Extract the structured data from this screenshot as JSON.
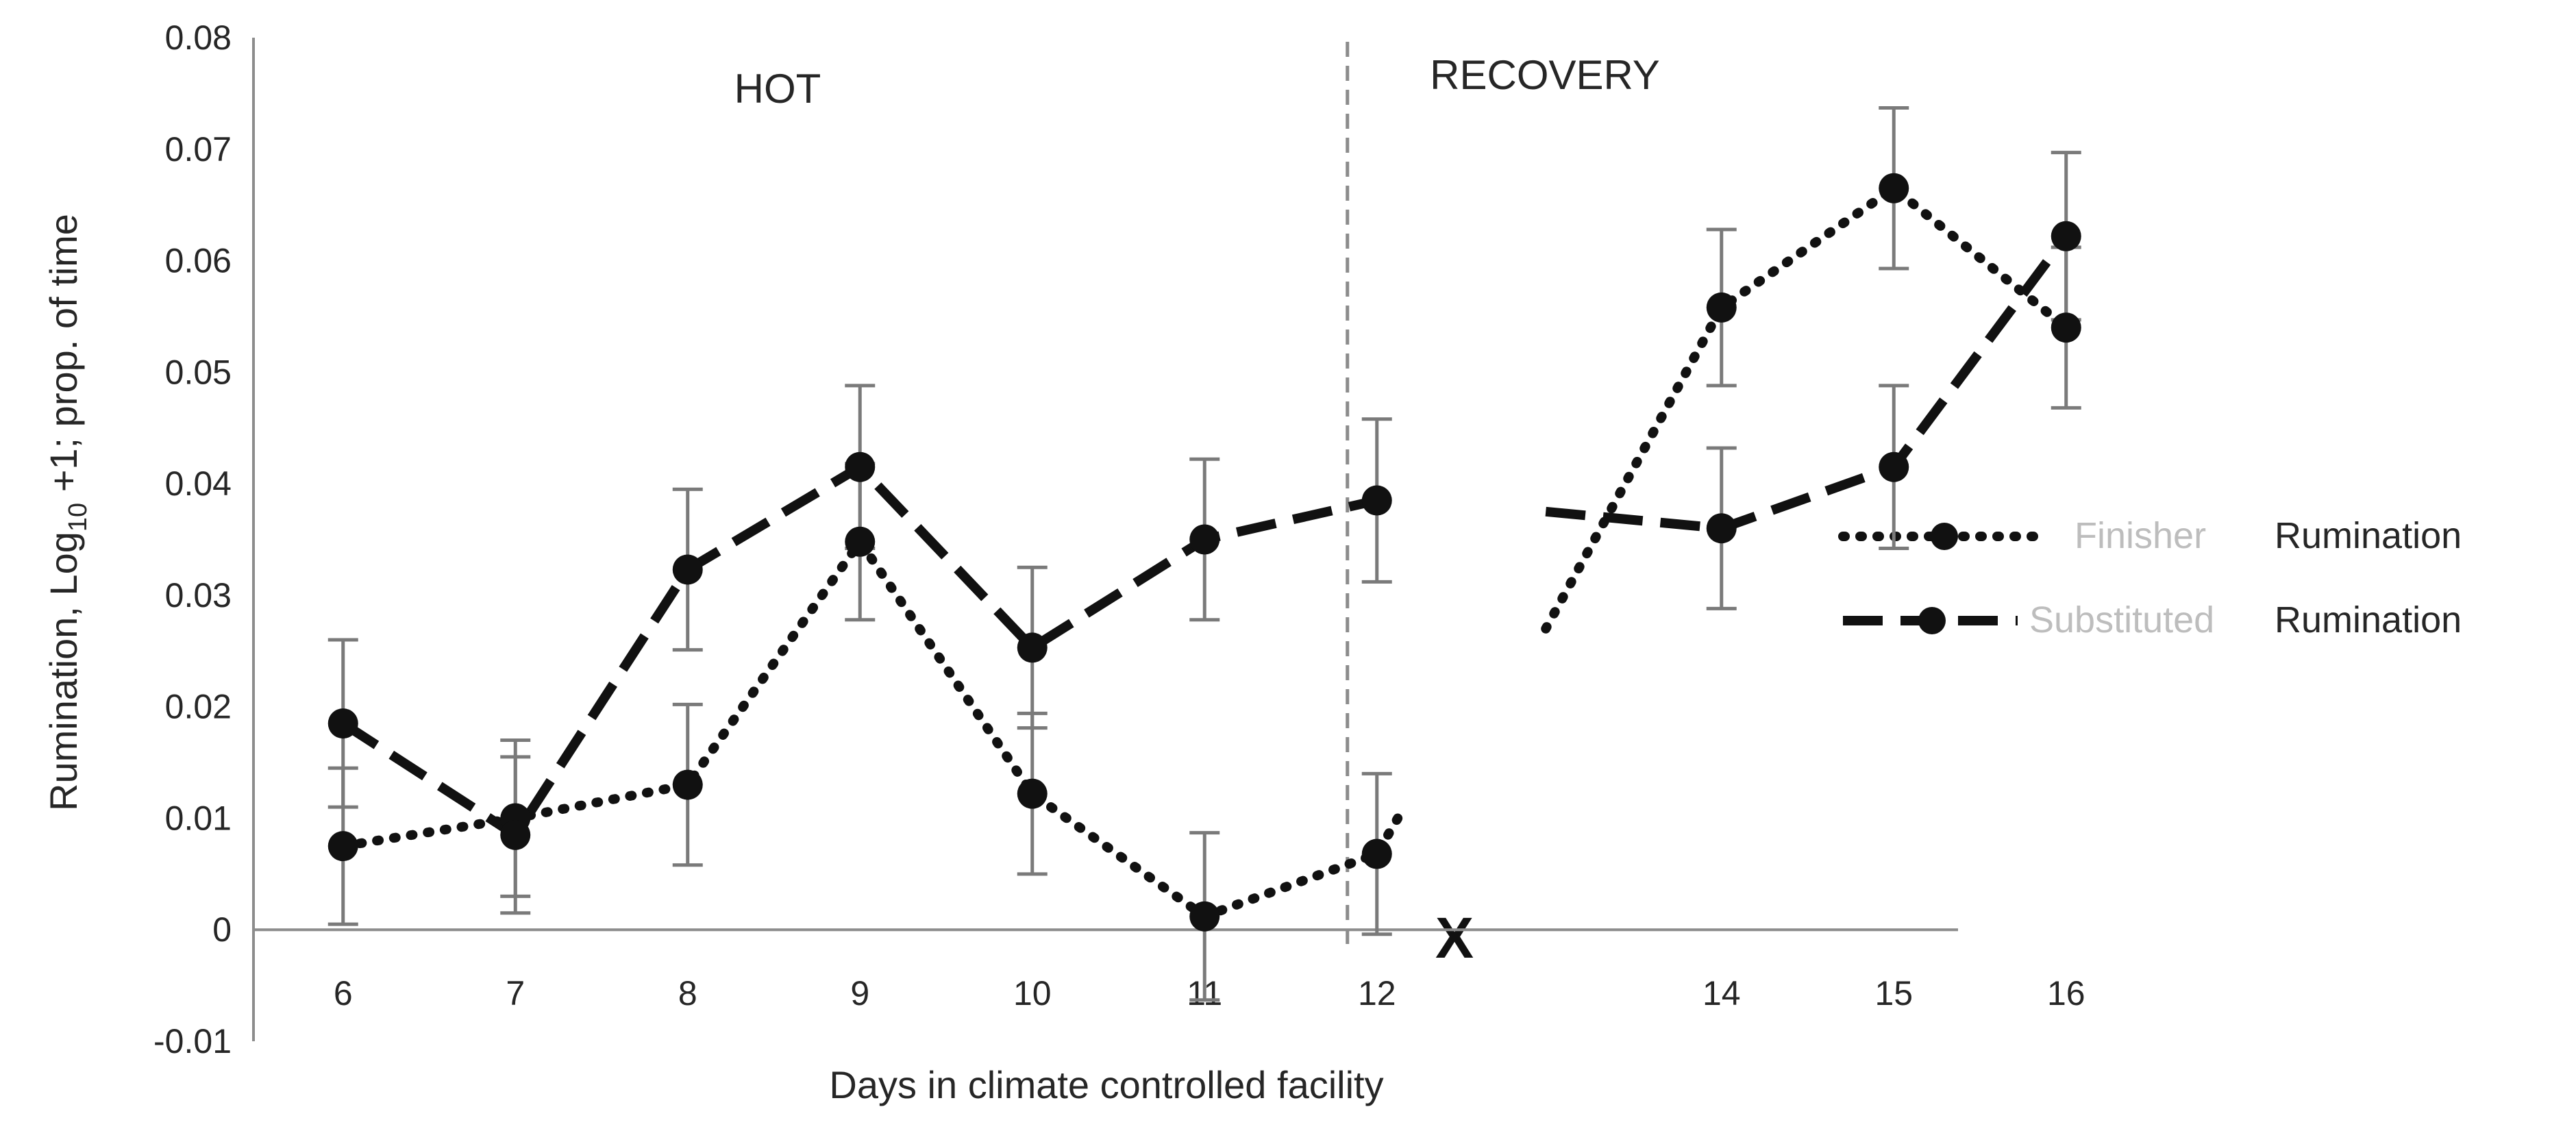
{
  "chart_data": {
    "type": "line",
    "title": "",
    "xlabel": "Days in climate controlled facility",
    "ylabel_main": "Rumination, Log",
    "ylabel_sub": "10",
    "ylabel_rest": " +1; prop. of time",
    "categories": [
      "6",
      "7",
      "8",
      "9",
      "10",
      "11",
      "12",
      "",
      "14",
      "15",
      "16"
    ],
    "ylim": [
      -0.01,
      0.08
    ],
    "yticks": [
      "0.08",
      "0.07",
      "0.06",
      "0.05",
      "0.04",
      "0.03",
      "0.02",
      "0.01",
      "0",
      "-0.01"
    ],
    "yticks_values": [
      0.08,
      0.07,
      0.06,
      0.05,
      0.04,
      0.03,
      0.02,
      0.01,
      0,
      -0.01
    ],
    "region_labels": [
      "HOT",
      "RECOVERY"
    ],
    "divider_after_category": "12",
    "missing_marker": "X",
    "missing_marker_category_index": 7,
    "legend_position": "right",
    "series": [
      {
        "name": "Finisher",
        "suffix": "Rumination",
        "style": "dotted",
        "values": [
          0.0075,
          0.01,
          0.013,
          0.0348,
          0.0122,
          0.0012,
          0.0068,
          null,
          0.0558,
          0.0665,
          0.054
        ],
        "errors": [
          0.007,
          0.007,
          0.0072,
          0.007,
          0.0072,
          0.0075,
          0.0072,
          null,
          0.007,
          0.0072,
          0.0072
        ]
      },
      {
        "name": "Substituted",
        "suffix": "Rumination",
        "style": "dashed",
        "values": [
          0.0185,
          0.0085,
          0.0323,
          0.0415,
          0.0253,
          0.035,
          0.0385,
          null,
          0.036,
          0.0415,
          0.0622
        ],
        "errors": [
          0.0075,
          0.007,
          0.0072,
          0.0073,
          0.0072,
          0.0072,
          0.0073,
          null,
          0.0072,
          0.0073,
          0.0075
        ]
      }
    ],
    "leadin_finisher_before_14": 0.027,
    "leadin_substituted_before_14": 0.0375,
    "tail_finisher_after_12": 0.011
  },
  "colors": {
    "line": "#111111",
    "axis": "#8c8c8c",
    "errorbar": "#7a7a7a",
    "divider": "#8c8c8c"
  }
}
